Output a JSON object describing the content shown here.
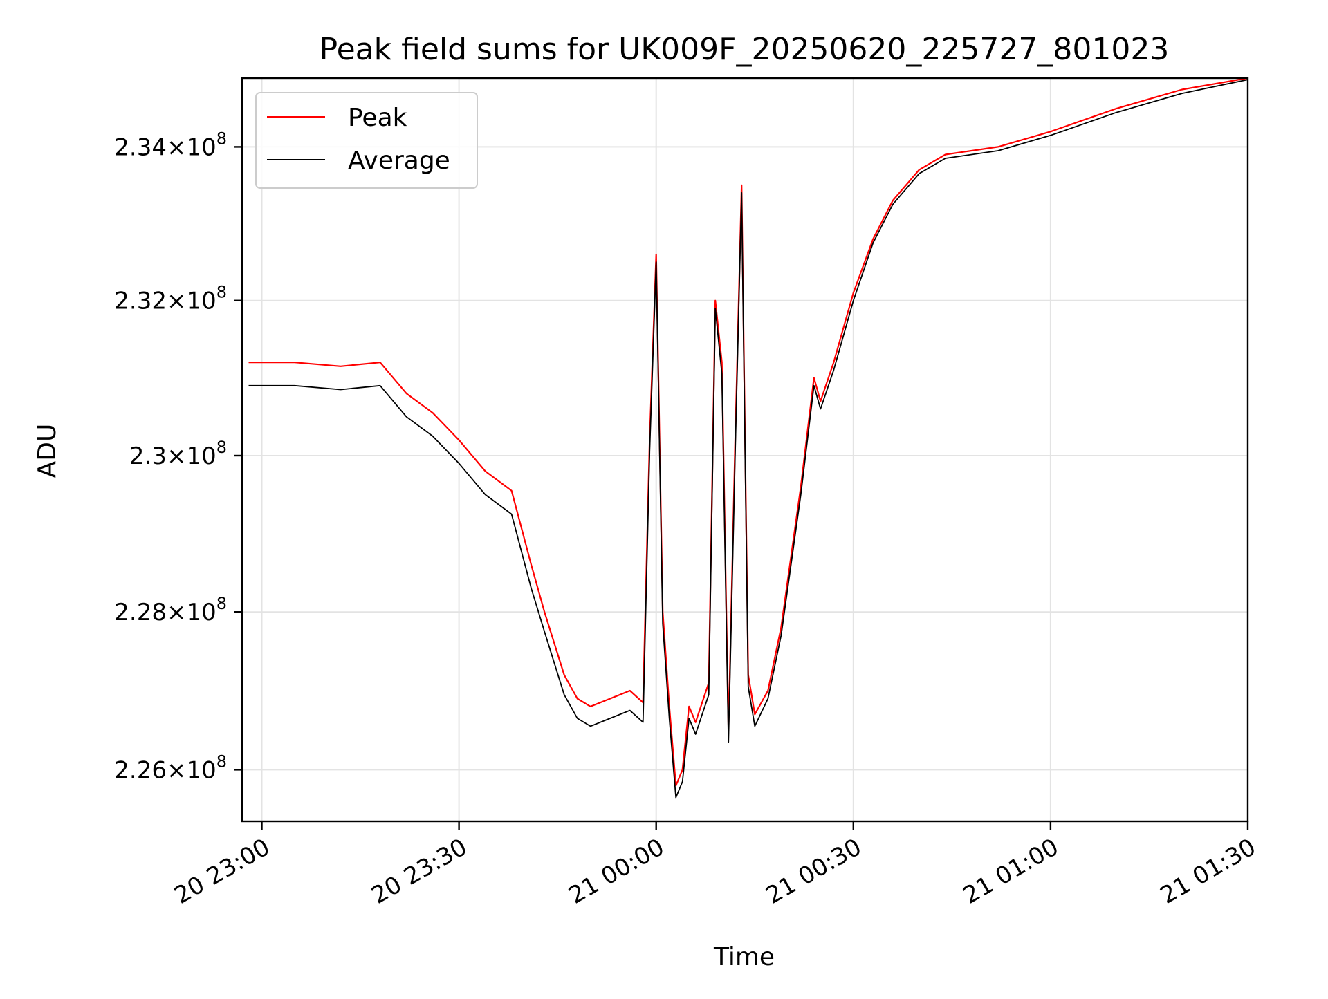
{
  "chart_data": {
    "type": "line",
    "title": "Peak field sums for UK009F_20250620_225727_801023",
    "xlabel": "Time",
    "ylabel": "ADU",
    "x_unit": "time of day (day hh:mm), 20 = 2025-06-20, 21 = 2025-06-21",
    "xlim": [
      "20 22:57",
      "21 01:30"
    ],
    "ylim": [
      225350000,
      234900000
    ],
    "y_scale": "log",
    "grid": true,
    "legend_position": "upper-left",
    "x_ticks": [
      {
        "value": "20 23:00",
        "label": "20 23:00"
      },
      {
        "value": "20 23:30",
        "label": "20 23:30"
      },
      {
        "value": "21 00:00",
        "label": "21 00:00"
      },
      {
        "value": "21 00:30",
        "label": "21 00:30"
      },
      {
        "value": "21 01:00",
        "label": "21 01:00"
      },
      {
        "value": "21 01:30",
        "label": "21 01:30"
      }
    ],
    "y_ticks": [
      {
        "value": 226000000,
        "mantissa": "2.26",
        "exponent": "8"
      },
      {
        "value": 228000000,
        "mantissa": "2.28",
        "exponent": "8"
      },
      {
        "value": 230000000,
        "mantissa": "2.3",
        "exponent": "8"
      },
      {
        "value": 232000000,
        "mantissa": "2.32",
        "exponent": "8"
      },
      {
        "value": 234000000,
        "mantissa": "2.34",
        "exponent": "8"
      }
    ],
    "series": [
      {
        "name": "Peak",
        "color": "#ff0000",
        "x": [
          "20 22:58",
          "20 23:05",
          "20 23:12",
          "20 23:18",
          "20 23:22",
          "20 23:26",
          "20 23:30",
          "20 23:34",
          "20 23:38",
          "20 23:41",
          "20 23:43",
          "20 23:46",
          "20 23:48",
          "20 23:50",
          "20 23:53",
          "20 23:56",
          "20 23:58",
          "20 23:59",
          "21 00:00",
          "21 00:01",
          "21 00:02",
          "21 00:03",
          "21 00:04",
          "21 00:05",
          "21 00:06",
          "21 00:08",
          "21 00:09",
          "21 00:10",
          "21 00:11",
          "21 00:12",
          "21 00:13",
          "21 00:14",
          "21 00:15",
          "21 00:17",
          "21 00:19",
          "21 00:22",
          "21 00:24",
          "21 00:25",
          "21 00:27",
          "21 00:30",
          "21 00:33",
          "21 00:36",
          "21 00:40",
          "21 00:44",
          "21 00:52",
          "21 01:00",
          "21 01:10",
          "21 01:20",
          "21 01:30"
        ],
        "y": [
          231200000,
          231200000,
          231150000,
          231200000,
          230800000,
          230550000,
          230200000,
          229800000,
          229550000,
          228600000,
          228000000,
          227200000,
          226900000,
          226800000,
          226900000,
          227000000,
          226850000,
          230200000,
          232600000,
          228000000,
          226800000,
          225800000,
          226000000,
          226800000,
          226600000,
          227100000,
          232000000,
          231200000,
          226500000,
          230100000,
          233500000,
          227200000,
          226700000,
          227000000,
          227800000,
          229600000,
          231000000,
          230700000,
          231200000,
          232100000,
          232800000,
          233300000,
          233700000,
          233900000,
          234000000,
          234200000,
          234500000,
          234750000,
          234900000
        ]
      },
      {
        "name": "Average",
        "color": "#000000",
        "x": [
          "20 22:58",
          "20 23:05",
          "20 23:12",
          "20 23:18",
          "20 23:22",
          "20 23:26",
          "20 23:30",
          "20 23:34",
          "20 23:38",
          "20 23:41",
          "20 23:43",
          "20 23:46",
          "20 23:48",
          "20 23:50",
          "20 23:53",
          "20 23:56",
          "20 23:58",
          "20 23:59",
          "21 00:00",
          "21 00:01",
          "21 00:02",
          "21 00:03",
          "21 00:04",
          "21 00:05",
          "21 00:06",
          "21 00:08",
          "21 00:09",
          "21 00:10",
          "21 00:11",
          "21 00:12",
          "21 00:13",
          "21 00:14",
          "21 00:15",
          "21 00:17",
          "21 00:19",
          "21 00:22",
          "21 00:24",
          "21 00:25",
          "21 00:27",
          "21 00:30",
          "21 00:33",
          "21 00:36",
          "21 00:40",
          "21 00:44",
          "21 00:52",
          "21 01:00",
          "21 01:10",
          "21 01:20",
          "21 01:30"
        ],
        "y": [
          230900000,
          230900000,
          230850000,
          230900000,
          230500000,
          230250000,
          229900000,
          229500000,
          229250000,
          228300000,
          227750000,
          226950000,
          226650000,
          226550000,
          226650000,
          226750000,
          226600000,
          230050000,
          232500000,
          227850000,
          226650000,
          225650000,
          225850000,
          226650000,
          226450000,
          226950000,
          231900000,
          231050000,
          226350000,
          229950000,
          233400000,
          227050000,
          226550000,
          226900000,
          227700000,
          229500000,
          230900000,
          230600000,
          231100000,
          232000000,
          232750000,
          233250000,
          233650000,
          233850000,
          233950000,
          234150000,
          234450000,
          234700000,
          234880000
        ]
      }
    ]
  }
}
